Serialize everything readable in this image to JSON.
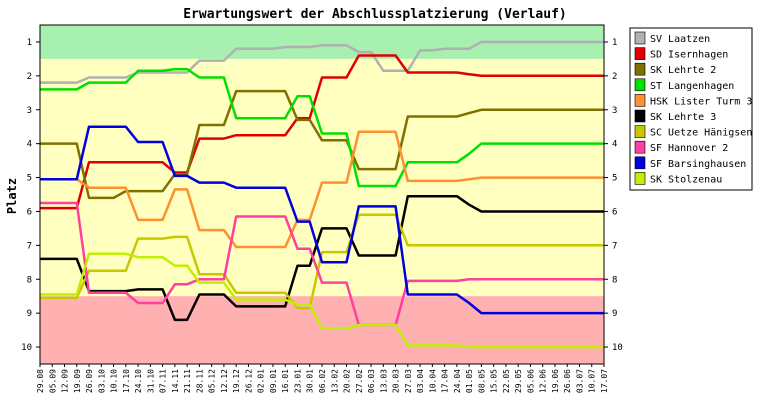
{
  "chart_data": {
    "type": "line",
    "title": "Erwartungswert der Abschlussplatzierung (Verlauf)",
    "ylabel": "Platz",
    "xlabel": "",
    "ylim": [
      0.5,
      10.5
    ],
    "y_inverted": true,
    "yticks": [
      "1",
      "2",
      "3",
      "4",
      "5",
      "6",
      "7",
      "8",
      "9",
      "10"
    ],
    "grid": false,
    "legend_position": "right",
    "x": [
      "29.08",
      "05.09",
      "12.09",
      "19.09",
      "26.09",
      "03.10",
      "10.10",
      "17.10",
      "24.10",
      "31.10",
      "07.11",
      "14.11",
      "21.11",
      "28.11",
      "05.12",
      "12.12",
      "19.12",
      "26.12",
      "02.01",
      "09.01",
      "16.01",
      "23.01",
      "30.01",
      "06.02",
      "13.02",
      "20.02",
      "27.02",
      "06.03",
      "13.03",
      "20.03",
      "27.03",
      "03.04",
      "10.04",
      "17.04",
      "24.04",
      "01.05",
      "08.05",
      "15.05",
      "22.05",
      "29.05",
      "05.06",
      "12.06",
      "19.06",
      "26.06",
      "03.07",
      "10.07",
      "17.07"
    ],
    "zones": {
      "green_top": 1.5,
      "yellow_bottom": 8.5
    },
    "series": [
      {
        "name": "SV Laatzen",
        "color": "#b0b0b0",
        "values": [
          2.2,
          2.2,
          2.2,
          2.2,
          2.05,
          2.05,
          2.05,
          2.05,
          1.9,
          1.9,
          1.9,
          1.9,
          1.9,
          1.55,
          1.55,
          1.55,
          1.2,
          1.2,
          1.2,
          1.2,
          1.15,
          1.15,
          1.15,
          1.1,
          1.1,
          1.1,
          1.3,
          1.3,
          1.85,
          1.85,
          1.85,
          1.25,
          1.25,
          1.2,
          1.2,
          1.2,
          1.0,
          1.0,
          1.0,
          1.0,
          1.0,
          1.0,
          1.0,
          1.0,
          1.0,
          1.0,
          1.0
        ]
      },
      {
        "name": "SD Isernhagen",
        "color": "#e00000",
        "values": [
          5.9,
          5.9,
          5.9,
          5.9,
          4.55,
          4.55,
          4.55,
          4.55,
          4.55,
          4.55,
          4.55,
          4.85,
          4.85,
          3.85,
          3.85,
          3.85,
          3.75,
          3.75,
          3.75,
          3.75,
          3.75,
          3.25,
          3.25,
          2.05,
          2.05,
          2.05,
          1.4,
          1.4,
          1.4,
          1.4,
          1.9,
          1.9,
          1.9,
          1.9,
          1.9,
          1.95,
          2.0,
          2.0,
          2.0,
          2.0,
          2.0,
          2.0,
          2.0,
          2.0,
          2.0,
          2.0,
          2.0
        ]
      },
      {
        "name": "SK Lehrte 2",
        "color": "#807000",
        "values": [
          4.0,
          4.0,
          4.0,
          4.0,
          5.6,
          5.6,
          5.6,
          5.4,
          5.4,
          5.4,
          5.4,
          4.9,
          4.9,
          3.45,
          3.45,
          3.45,
          2.45,
          2.45,
          2.45,
          2.45,
          2.45,
          3.3,
          3.3,
          3.9,
          3.9,
          3.9,
          4.75,
          4.75,
          4.75,
          4.75,
          3.2,
          3.2,
          3.2,
          3.2,
          3.2,
          3.1,
          3.0,
          3.0,
          3.0,
          3.0,
          3.0,
          3.0,
          3.0,
          3.0,
          3.0,
          3.0,
          3.0
        ]
      },
      {
        "name": "ST Langenhagen",
        "color": "#00e000",
        "values": [
          2.4,
          2.4,
          2.4,
          2.4,
          2.2,
          2.2,
          2.2,
          2.2,
          1.85,
          1.85,
          1.85,
          1.8,
          1.8,
          2.05,
          2.05,
          2.05,
          3.25,
          3.25,
          3.25,
          3.25,
          3.25,
          2.6,
          2.6,
          3.7,
          3.7,
          3.7,
          5.25,
          5.25,
          5.25,
          5.25,
          4.55,
          4.55,
          4.55,
          4.55,
          4.55,
          4.3,
          4.0,
          4.0,
          4.0,
          4.0,
          4.0,
          4.0,
          4.0,
          4.0,
          4.0,
          4.0,
          4.0
        ]
      },
      {
        "name": "HSK Lister Turm 3",
        "color": "#ff9030",
        "values": [
          5.05,
          5.05,
          5.05,
          5.05,
          5.3,
          5.3,
          5.3,
          5.3,
          6.25,
          6.25,
          6.25,
          5.35,
          5.35,
          6.55,
          6.55,
          6.55,
          7.05,
          7.05,
          7.05,
          7.05,
          7.05,
          6.25,
          6.25,
          5.15,
          5.15,
          5.15,
          3.65,
          3.65,
          3.65,
          3.65,
          5.1,
          5.1,
          5.1,
          5.1,
          5.1,
          5.05,
          5.0,
          5.0,
          5.0,
          5.0,
          5.0,
          5.0,
          5.0,
          5.0,
          5.0,
          5.0,
          5.0
        ]
      },
      {
        "name": "SK Lehrte 3",
        "color": "#000000",
        "values": [
          7.4,
          7.4,
          7.4,
          7.4,
          8.35,
          8.35,
          8.35,
          8.35,
          8.3,
          8.3,
          8.3,
          9.2,
          9.2,
          8.45,
          8.45,
          8.45,
          8.8,
          8.8,
          8.8,
          8.8,
          8.8,
          7.6,
          7.6,
          6.5,
          6.5,
          6.5,
          7.3,
          7.3,
          7.3,
          7.3,
          5.55,
          5.55,
          5.55,
          5.55,
          5.55,
          5.8,
          6.0,
          6.0,
          6.0,
          6.0,
          6.0,
          6.0,
          6.0,
          6.0,
          6.0,
          6.0,
          6.0
        ]
      },
      {
        "name": "SC Uetze Hänigsen",
        "color": "#c8c800",
        "values": [
          8.55,
          8.55,
          8.55,
          8.55,
          7.75,
          7.75,
          7.75,
          7.75,
          6.8,
          6.8,
          6.8,
          6.75,
          6.75,
          7.85,
          7.85,
          7.85,
          8.4,
          8.4,
          8.4,
          8.4,
          8.4,
          8.85,
          8.85,
          7.2,
          7.2,
          7.2,
          6.1,
          6.1,
          6.1,
          6.1,
          7.0,
          7.0,
          7.0,
          7.0,
          7.0,
          7.0,
          7.0,
          7.0,
          7.0,
          7.0,
          7.0,
          7.0,
          7.0,
          7.0,
          7.0,
          7.0,
          7.0
        ]
      },
      {
        "name": "SF Hannover 2",
        "color": "#ff40a0",
        "values": [
          5.75,
          5.75,
          5.75,
          5.75,
          8.4,
          8.4,
          8.4,
          8.4,
          8.7,
          8.7,
          8.7,
          8.15,
          8.15,
          8.0,
          8.0,
          8.0,
          6.15,
          6.15,
          6.15,
          6.15,
          6.15,
          7.1,
          7.1,
          8.1,
          8.1,
          8.1,
          9.35,
          9.35,
          9.35,
          9.35,
          8.05,
          8.05,
          8.05,
          8.05,
          8.05,
          8.0,
          8.0,
          8.0,
          8.0,
          8.0,
          8.0,
          8.0,
          8.0,
          8.0,
          8.0,
          8.0,
          8.0
        ]
      },
      {
        "name": "SF Barsinghausen",
        "color": "#0000e0",
        "values": [
          5.05,
          5.05,
          5.05,
          5.05,
          3.5,
          3.5,
          3.5,
          3.5,
          3.95,
          3.95,
          3.95,
          4.95,
          4.95,
          5.15,
          5.15,
          5.15,
          5.3,
          5.3,
          5.3,
          5.3,
          5.3,
          6.3,
          6.3,
          7.5,
          7.5,
          7.5,
          5.85,
          5.85,
          5.85,
          5.85,
          8.45,
          8.45,
          8.45,
          8.45,
          8.45,
          8.7,
          9.0,
          9.0,
          9.0,
          9.0,
          9.0,
          9.0,
          9.0,
          9.0,
          9.0,
          9.0,
          9.0
        ]
      },
      {
        "name": "SK Stolzenau",
        "color": "#c0f000",
        "values": [
          8.45,
          8.45,
          8.45,
          8.45,
          7.25,
          7.25,
          7.25,
          7.25,
          7.35,
          7.35,
          7.35,
          7.6,
          7.6,
          8.1,
          8.1,
          8.1,
          8.6,
          8.6,
          8.6,
          8.6,
          8.6,
          8.75,
          8.75,
          9.45,
          9.45,
          9.45,
          9.35,
          9.35,
          9.35,
          9.35,
          9.95,
          9.95,
          9.95,
          9.95,
          9.95,
          10.0,
          10.0,
          10.0,
          10.0,
          10.0,
          10.0,
          10.0,
          10.0,
          10.0,
          10.0,
          10.0,
          10.0
        ]
      }
    ]
  }
}
